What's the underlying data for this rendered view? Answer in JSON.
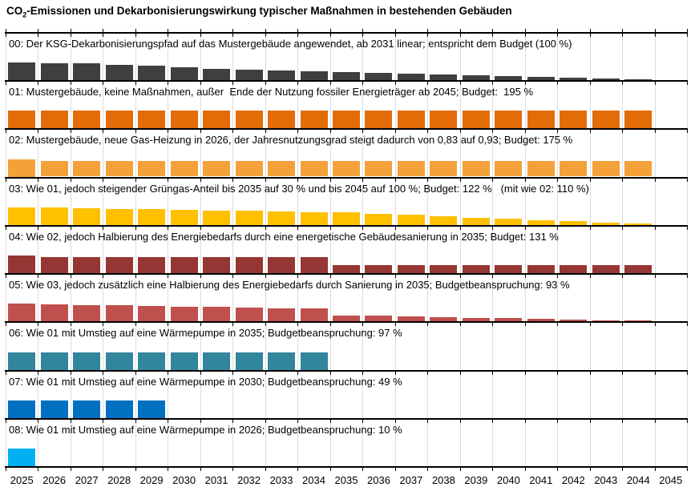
{
  "title": {
    "co": "CO",
    "sub": "2",
    "rest": "-Emissionen und Dekarbonisierungswirkung typischer Maßnahmen in bestehenden Gebäuden"
  },
  "chart_data": {
    "type": "bar",
    "layout": "small-multiples, 9 stacked panels sharing one x-axis",
    "x_tick_labels": [
      "2025",
      "2026",
      "2027",
      "2028",
      "2029",
      "2030",
      "2031",
      "2032",
      "2033",
      "2034",
      "2035",
      "2036",
      "2037",
      "2038",
      "2039",
      "2040",
      "2041",
      "2042",
      "2043",
      "2044",
      "2045"
    ],
    "unit": "relative annual CO2 emissions (2025 = 1.0), y-axis unlabeled",
    "grid": true,
    "gridline_color": "#dcdcdc",
    "axis_color": "#000000",
    "panels": [
      {
        "id": "00",
        "label": "00: Der KSG-Dekarbonisierungspfad auf das Mustergebäude angewendet, ab 2031 linear; entspricht dem Budget (100 %)",
        "budget_percent": 100,
        "color": "#3f3f3f",
        "values": [
          1.0,
          0.97,
          0.94,
          0.87,
          0.81,
          0.75,
          0.65,
          0.604,
          0.557,
          0.511,
          0.464,
          0.418,
          0.371,
          0.325,
          0.279,
          0.232,
          0.186,
          0.139,
          0.093,
          0.046,
          0
        ]
      },
      {
        "id": "01",
        "label": "01: Mustergebäude, keine Maßnahmen, außer  Ende der Nutzung fossiler Energieträger ab 2045; Budget:  195 %",
        "budget_percent": 195,
        "color": "#e36c09",
        "values": [
          1,
          1,
          1,
          1,
          1,
          1,
          1,
          1,
          1,
          1,
          1,
          1,
          1,
          1,
          1,
          1,
          1,
          1,
          1,
          1,
          0
        ]
      },
      {
        "id": "02",
        "label": "02: Mustergebäude, neue Gas-Heizung in 2026, der Jahresnutzungsgrad steigt dadurch von 0,83 auf 0,93; Budget: 175 %",
        "budget_percent": 175,
        "color": "#f4a13a",
        "values": [
          1.0,
          0.89,
          0.89,
          0.89,
          0.89,
          0.89,
          0.89,
          0.89,
          0.89,
          0.89,
          0.89,
          0.89,
          0.89,
          0.89,
          0.89,
          0.89,
          0.89,
          0.89,
          0.89,
          0.89,
          0
        ]
      },
      {
        "id": "03",
        "label": "03: Wie 01, jedoch steigender Grüngas-Anteil bis 2035 auf 30 % und bis 2045 auf 100 %; Budget: 122 %   (mit wie 02: 110 %)",
        "budget_percent": 122,
        "budget_percent_alt": 110,
        "color": "#ffc000",
        "values": [
          1.0,
          0.97,
          0.94,
          0.91,
          0.88,
          0.85,
          0.82,
          0.79,
          0.76,
          0.73,
          0.7,
          0.63,
          0.56,
          0.49,
          0.42,
          0.35,
          0.28,
          0.21,
          0.14,
          0.07,
          0
        ]
      },
      {
        "id": "04",
        "label": "04: Wie 02, jedoch Halbierung des Energiebedarfs durch eine energetische Gebäudesanierung in 2035; Budget: 131 %",
        "budget_percent": 131,
        "color": "#963634",
        "values": [
          1.0,
          0.89,
          0.89,
          0.89,
          0.89,
          0.89,
          0.89,
          0.89,
          0.89,
          0.89,
          0.445,
          0.445,
          0.445,
          0.445,
          0.445,
          0.445,
          0.445,
          0.445,
          0.445,
          0.445,
          0
        ]
      },
      {
        "id": "05",
        "label": "05: Wie 03, jedoch zusätzlich eine Halbierung des Energiebedarfs durch Sanierung in 2035; Budgetbeanspruchung: 93 %",
        "budget_percent": 93,
        "color": "#c0504d",
        "values": [
          1.0,
          0.97,
          0.94,
          0.91,
          0.88,
          0.85,
          0.82,
          0.79,
          0.76,
          0.73,
          0.35,
          0.315,
          0.28,
          0.245,
          0.21,
          0.175,
          0.14,
          0.105,
          0.07,
          0.035,
          0
        ]
      },
      {
        "id": "06",
        "label": "06: Wie 01 mit Umstieg auf eine Wärmepumpe in 2035; Budgetbeanspruchung: 97 %",
        "budget_percent": 97,
        "color": "#31859c",
        "values": [
          1,
          1,
          1,
          1,
          1,
          1,
          1,
          1,
          1,
          1,
          0,
          0,
          0,
          0,
          0,
          0,
          0,
          0,
          0,
          0,
          0
        ]
      },
      {
        "id": "07",
        "label": "07: Wie 01 mit Umstieg auf eine Wärmepumpe in 2030; Budgetbeanspruchung: 49 %",
        "budget_percent": 49,
        "color": "#0070c0",
        "values": [
          1,
          1,
          1,
          1,
          1,
          0,
          0,
          0,
          0,
          0,
          0,
          0,
          0,
          0,
          0,
          0,
          0,
          0,
          0,
          0,
          0
        ]
      },
      {
        "id": "08",
        "label": "08: Wie 01 mit Umstieg auf eine Wärmepumpe in 2026; Budgetbeanspruchung: 10 %",
        "budget_percent": 10,
        "color": "#00b0f0",
        "values": [
          1,
          0,
          0,
          0,
          0,
          0,
          0,
          0,
          0,
          0,
          0,
          0,
          0,
          0,
          0,
          0,
          0,
          0,
          0,
          0,
          0
        ]
      }
    ]
  }
}
